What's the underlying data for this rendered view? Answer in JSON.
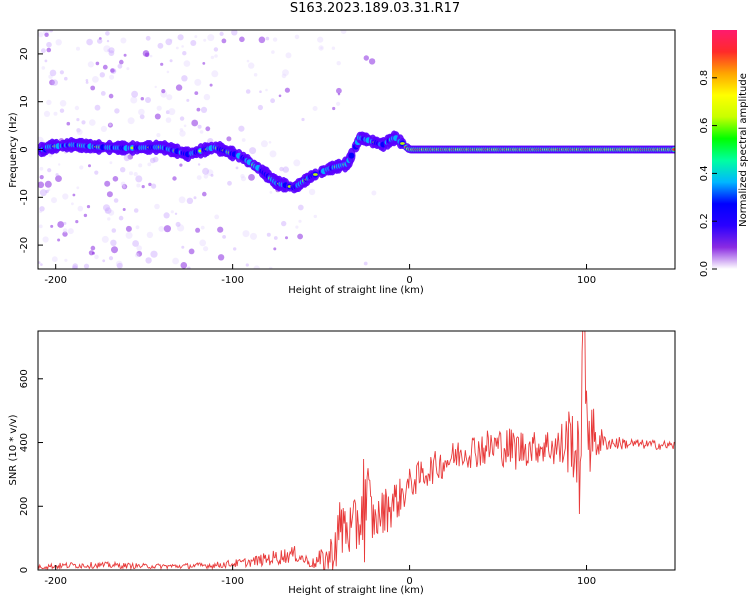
{
  "title": "S163.2023.189.03.31.R17",
  "colors": {
    "snr_line": "#e83a3a",
    "frame": "#000000",
    "colormap": [
      "#ffffff",
      "#e6d9ff",
      "#c9a6ff",
      "#8a2be2",
      "#5a00ff",
      "#0000ff",
      "#00b7ff",
      "#00ffb0",
      "#00ff00",
      "#c8ff00",
      "#ffff00",
      "#ffa500",
      "#ff2a2a",
      "#ff1a6e"
    ]
  },
  "chart_data": [
    {
      "type": "heatmap",
      "xlabel": "Height of straight line (km)",
      "ylabel": "Frequency (Hz)",
      "xlim": [
        -210,
        150
      ],
      "ylim": [
        -25,
        25
      ],
      "x_ticks": [
        "-200",
        "-100",
        "0",
        "100"
      ],
      "y_ticks": [
        "-20",
        "-10",
        "0",
        "10",
        "20"
      ],
      "colorbar": {
        "label": "Normalized spectral amplitude",
        "range": [
          0,
          1
        ],
        "ticks": [
          "0.0",
          "0.2",
          "0.4",
          "0.6",
          "0.8"
        ]
      },
      "ridge": [
        {
          "x": -205,
          "y": 0.5
        },
        {
          "x": -190,
          "y": 1.0
        },
        {
          "x": -175,
          "y": 0.5
        },
        {
          "x": -160,
          "y": 0.3
        },
        {
          "x": -140,
          "y": 0.5
        },
        {
          "x": -125,
          "y": -1.0
        },
        {
          "x": -110,
          "y": 0.5
        },
        {
          "x": -95,
          "y": -1.5
        },
        {
          "x": -85,
          "y": -4.0
        },
        {
          "x": -75,
          "y": -7.0
        },
        {
          "x": -65,
          "y": -8.0
        },
        {
          "x": -55,
          "y": -5.5
        },
        {
          "x": -45,
          "y": -4.0
        },
        {
          "x": -35,
          "y": -3.0
        },
        {
          "x": -28,
          "y": 2.5
        },
        {
          "x": -15,
          "y": 1.0
        },
        {
          "x": -8,
          "y": 2.5
        },
        {
          "x": 0,
          "y": 0.0
        },
        {
          "x": 50,
          "y": 0.0
        },
        {
          "x": 100,
          "y": 0.0
        },
        {
          "x": 150,
          "y": 0.0
        }
      ]
    },
    {
      "type": "line",
      "xlabel": "Height of straight line (km)",
      "ylabel": "SNR (10 * v/v)",
      "xlim": [
        -210,
        150
      ],
      "ylim": [
        0,
        750
      ],
      "x_ticks": [
        "-200",
        "-100",
        "0",
        "100"
      ],
      "y_ticks": [
        "0",
        "200",
        "400",
        "600"
      ],
      "series": [
        {
          "x": [
            -210,
            -190,
            -170,
            -150,
            -130,
            -110,
            -90,
            -75,
            -65,
            -55,
            -45,
            -38,
            -32,
            -25,
            -20,
            -12,
            -5,
            0,
            10,
            20,
            30,
            40,
            50,
            60,
            70,
            80,
            85,
            92,
            96,
            98,
            102,
            110,
            130,
            150
          ],
          "y": [
            10,
            15,
            15,
            12,
            12,
            15,
            25,
            40,
            50,
            20,
            40,
            140,
            120,
            220,
            150,
            200,
            230,
            270,
            310,
            340,
            370,
            380,
            390,
            380,
            385,
            390,
            380,
            420,
            300,
            690,
            420,
            400,
            395,
            390
          ],
          "spread": [
            8,
            10,
            10,
            8,
            8,
            10,
            15,
            25,
            25,
            15,
            60,
            120,
            80,
            200,
            60,
            80,
            60,
            50,
            50,
            50,
            50,
            60,
            60,
            70,
            50,
            60,
            80,
            120,
            150,
            200,
            120,
            25,
            15,
            15
          ]
        }
      ]
    }
  ]
}
